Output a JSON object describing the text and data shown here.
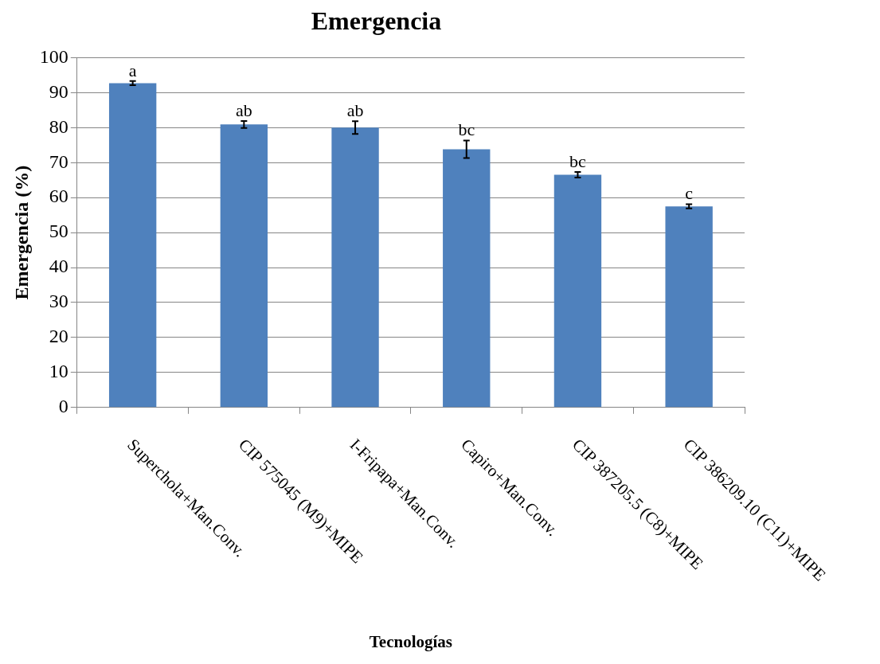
{
  "chart_data": {
    "type": "bar",
    "title": "Emergencia",
    "xlabel": "Tecnologías",
    "ylabel": "Emergencia (%)",
    "categories": [
      "Superchola+Man.Conv.",
      "CIP 575045 (M9)+MIPE",
      "I-Fripapa+Man.Conv.",
      "Capiro+Man.Conv.",
      "CIP 387205.5 (C8)+MIPE",
      "CIP 386209.10 (C11)+MIPE"
    ],
    "values": [
      92.7,
      80.9,
      80.0,
      73.8,
      66.5,
      57.5
    ],
    "errors": [
      0.6,
      1.0,
      1.8,
      2.5,
      0.8,
      0.6
    ],
    "color": "#4f81bd",
    "ylim": [
      0,
      100
    ],
    "yticks": [
      0,
      10,
      20,
      30,
      40,
      50,
      60,
      70,
      80,
      90,
      100
    ],
    "grid": "y",
    "legend": false,
    "annotations": [
      {
        "text": "a",
        "x": "Superchola+Man.Conv.",
        "y": 93.3
      },
      {
        "text": "ab",
        "x": "CIP 575045 (M9)+MIPE",
        "y": 81.9
      },
      {
        "text": "ab",
        "x": "I-Fripapa+Man.Conv.",
        "y": 81.8
      },
      {
        "text": "bc",
        "x": "Capiro+Man.Conv.",
        "y": 76.3
      },
      {
        "text": "bc",
        "x": "CIP 387205.5 (C8)+MIPE",
        "y": 67.3
      },
      {
        "text": "c",
        "x": "CIP 386209.10 (C11)+MIPE",
        "y": 58.1
      }
    ]
  }
}
